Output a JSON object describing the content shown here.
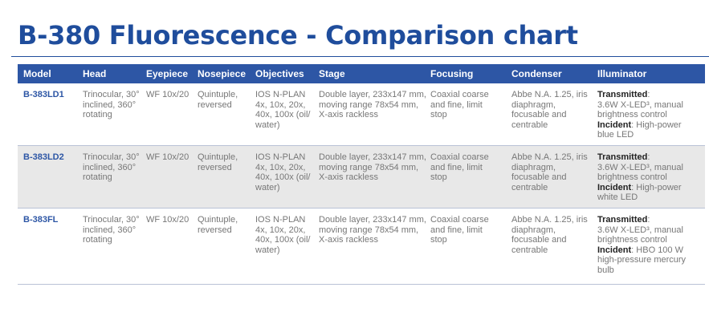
{
  "page": {
    "title": "B-380 Fluorescence - Comparison chart"
  },
  "colors": {
    "title": "#1f4d9c",
    "header_bg": "#2d56a5",
    "alt_row_bg": "#e8e8e8",
    "model_text": "#2d56a5",
    "body_text": "#777777"
  },
  "table": {
    "headers": {
      "model": "Model",
      "head": "Head",
      "eyepiece": "Eyepiece",
      "nosepiece": "Nosepiece",
      "objectives": "Objectives",
      "stage": "Stage",
      "focusing": "Focusing",
      "condenser": "Condenser",
      "illuminator": "Illuminator"
    },
    "rows": [
      {
        "model": "B-383LD1",
        "head": "Trinocular, 30° inclined, 360° rotating",
        "eyepiece": "WF 10x/20",
        "nosepiece": "Quintuple, reversed",
        "objectives": "IOS N-PLAN 4x, 10x, 20x, 40x, 100x (oil/ water)",
        "stage": "Double layer, 233x147 mm, moving range 78x54 mm, X-axis rackless",
        "focusing": "Coaxial coarse and fine, limit stop",
        "condenser": "Abbe N.A. 1.25, iris diaphragm, focusable and centrable",
        "illuminator": {
          "transmitted_label": "Transmitted",
          "transmitted_colon": ":",
          "transmitted_text": "3.6W X-LED³, manual brightness control",
          "incident_label": "Incident",
          "incident_colon": ":",
          "incident_text": "High-power blue LED"
        }
      },
      {
        "model": "B-383LD2",
        "head": "Trinocular, 30° inclined, 360° rotating",
        "eyepiece": "WF 10x/20",
        "nosepiece": "Quintuple, reversed",
        "objectives": "IOS N-PLAN 4x, 10x, 20x, 40x, 100x (oil/ water)",
        "stage": "Double layer, 233x147 mm, moving range 78x54 mm, X-axis rackless",
        "focusing": "Coaxial coarse and fine, limit stop",
        "condenser": "Abbe N.A. 1.25, iris diaphragm, focusable and centrable",
        "illuminator": {
          "transmitted_label": "Transmitted",
          "transmitted_colon": ":",
          "transmitted_text": "3.6W X-LED³, manual brightness control",
          "incident_label": "Incident",
          "incident_colon": ":",
          "incident_text": "High-power white LED"
        }
      },
      {
        "model": "B-383FL",
        "head": "Trinocular, 30° inclined, 360° rotating",
        "eyepiece": "WF 10x/20",
        "nosepiece": "Quintuple, reversed",
        "objectives": "IOS N-PLAN 4x, 10x, 20x, 40x, 100x (oil/ water)",
        "stage": "Double layer, 233x147 mm, moving range 78x54 mm, X-axis rackless",
        "focusing": "Coaxial coarse and fine, limit stop",
        "condenser": "Abbe N.A. 1.25, iris diaphragm, focusable and centrable",
        "illuminator": {
          "transmitted_label": "Transmitted",
          "transmitted_colon": ":",
          "transmitted_text": "3.6W X-LED³, manual brightness control",
          "incident_label": "Incident",
          "incident_colon": ":",
          "incident_text": "HBO 100 W high-pressure mercury bulb"
        }
      }
    ]
  }
}
